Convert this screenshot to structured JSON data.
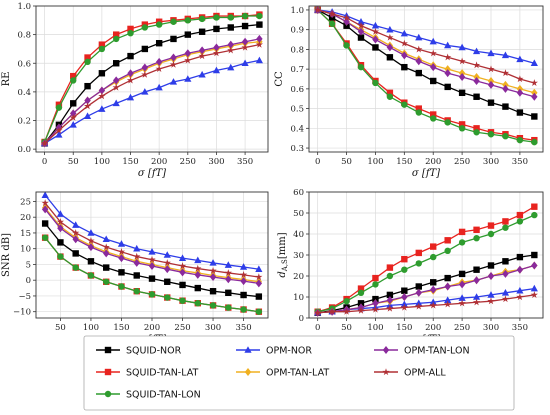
{
  "colors": {
    "SQUID-NOR": "#000000",
    "SQUID-TAN-LAT": "#e8231f",
    "SQUID-TAN-LON": "#2e9c2e",
    "OPM-NOR": "#2e3de8",
    "OPM-TAN-LAT": "#f0b020",
    "OPM-TAN-LON": "#8a2a9c",
    "OPM-ALL": "#b03035"
  },
  "markers": {
    "SQUID-NOR": "square",
    "SQUID-TAN-LAT": "square",
    "SQUID-TAN-LON": "circle",
    "OPM-NOR": "triangle",
    "OPM-TAN-LAT": "diamond",
    "OPM-TAN-LON": "diamond",
    "OPM-ALL": "star"
  },
  "legend": {
    "placement": "bottom-center",
    "items": [
      "SQUID-NOR",
      "OPM-NOR",
      "OPM-TAN-LON",
      "SQUID-TAN-LAT",
      "OPM-TAN-LAT",
      "OPM-ALL",
      "SQUID-TAN-LON"
    ]
  },
  "chart_data": [
    {
      "type": "line",
      "ylabel": "RE",
      "xlabel": "σ [fT]",
      "xlim": [
        -15,
        390
      ],
      "ylim": [
        -0.02,
        1.0
      ],
      "xticks": [
        0,
        50,
        100,
        150,
        200,
        250,
        300,
        350
      ],
      "yticks": [
        0.0,
        0.2,
        0.4,
        0.6,
        0.8,
        1.0
      ],
      "ytick_labels": [
        "0.0",
        "0.2",
        "0.4",
        "0.6",
        "0.8",
        "1.0"
      ],
      "grid": true,
      "x": [
        0,
        25,
        50,
        75,
        100,
        125,
        150,
        175,
        200,
        225,
        250,
        275,
        300,
        325,
        350,
        375
      ],
      "series": [
        {
          "name": "SQUID-NOR",
          "values": [
            0.04,
            0.17,
            0.32,
            0.44,
            0.53,
            0.6,
            0.65,
            0.7,
            0.74,
            0.77,
            0.8,
            0.82,
            0.84,
            0.85,
            0.86,
            0.87
          ]
        },
        {
          "name": "SQUID-TAN-LAT",
          "values": [
            0.05,
            0.31,
            0.51,
            0.64,
            0.73,
            0.8,
            0.84,
            0.87,
            0.89,
            0.9,
            0.91,
            0.92,
            0.93,
            0.93,
            0.93,
            0.94
          ]
        },
        {
          "name": "SQUID-TAN-LON",
          "values": [
            0.05,
            0.29,
            0.48,
            0.61,
            0.7,
            0.77,
            0.81,
            0.85,
            0.87,
            0.89,
            0.9,
            0.91,
            0.92,
            0.92,
            0.93,
            0.93
          ]
        },
        {
          "name": "OPM-NOR",
          "values": [
            0.04,
            0.1,
            0.17,
            0.23,
            0.28,
            0.32,
            0.36,
            0.4,
            0.43,
            0.47,
            0.49,
            0.52,
            0.55,
            0.57,
            0.6,
            0.62
          ]
        },
        {
          "name": "OPM-TAN-LAT",
          "values": [
            0.04,
            0.15,
            0.25,
            0.34,
            0.41,
            0.47,
            0.52,
            0.56,
            0.6,
            0.63,
            0.66,
            0.68,
            0.7,
            0.72,
            0.74,
            0.75
          ]
        },
        {
          "name": "OPM-TAN-LON",
          "values": [
            0.04,
            0.15,
            0.25,
            0.34,
            0.41,
            0.48,
            0.53,
            0.57,
            0.61,
            0.64,
            0.67,
            0.69,
            0.71,
            0.73,
            0.75,
            0.77
          ]
        },
        {
          "name": "OPM-ALL",
          "values": [
            0.04,
            0.13,
            0.22,
            0.3,
            0.37,
            0.43,
            0.48,
            0.52,
            0.56,
            0.59,
            0.62,
            0.65,
            0.67,
            0.69,
            0.71,
            0.73
          ]
        }
      ]
    },
    {
      "type": "line",
      "ylabel": "CC",
      "xlabel": "σ [fT]",
      "xlim": [
        -15,
        390
      ],
      "ylim": [
        0.28,
        1.02
      ],
      "xticks": [
        0,
        50,
        100,
        150,
        200,
        250,
        300,
        350
      ],
      "yticks": [
        0.3,
        0.4,
        0.5,
        0.6,
        0.7,
        0.8,
        0.9,
        1.0
      ],
      "ytick_labels": [
        "0.3",
        "0.4",
        "0.5",
        "0.6",
        "0.7",
        "0.8",
        "0.9",
        "1.0"
      ],
      "grid": true,
      "x": [
        0,
        25,
        50,
        75,
        100,
        125,
        150,
        175,
        200,
        225,
        250,
        275,
        300,
        325,
        350,
        375
      ],
      "series": [
        {
          "name": "SQUID-NOR",
          "values": [
            1.0,
            0.96,
            0.92,
            0.86,
            0.81,
            0.76,
            0.71,
            0.68,
            0.64,
            0.61,
            0.58,
            0.56,
            0.53,
            0.51,
            0.48,
            0.46
          ]
        },
        {
          "name": "SQUID-TAN-LAT",
          "values": [
            1.0,
            0.93,
            0.83,
            0.72,
            0.64,
            0.58,
            0.53,
            0.5,
            0.47,
            0.44,
            0.42,
            0.4,
            0.38,
            0.37,
            0.35,
            0.34
          ]
        },
        {
          "name": "SQUID-TAN-LON",
          "values": [
            1.0,
            0.93,
            0.82,
            0.71,
            0.63,
            0.56,
            0.52,
            0.48,
            0.45,
            0.43,
            0.4,
            0.38,
            0.37,
            0.36,
            0.34,
            0.33
          ]
        },
        {
          "name": "OPM-NOR",
          "values": [
            1.0,
            0.99,
            0.97,
            0.94,
            0.92,
            0.9,
            0.88,
            0.86,
            0.84,
            0.82,
            0.81,
            0.79,
            0.78,
            0.77,
            0.75,
            0.73
          ]
        },
        {
          "name": "OPM-TAN-LAT",
          "values": [
            1.0,
            0.98,
            0.94,
            0.9,
            0.86,
            0.82,
            0.78,
            0.75,
            0.72,
            0.7,
            0.68,
            0.66,
            0.64,
            0.62,
            0.6,
            0.58
          ]
        },
        {
          "name": "OPM-TAN-LON",
          "values": [
            1.0,
            0.98,
            0.94,
            0.89,
            0.85,
            0.81,
            0.77,
            0.74,
            0.71,
            0.68,
            0.66,
            0.64,
            0.62,
            0.6,
            0.58,
            0.56
          ]
        },
        {
          "name": "OPM-ALL",
          "values": [
            1.0,
            0.98,
            0.96,
            0.92,
            0.89,
            0.86,
            0.83,
            0.8,
            0.78,
            0.76,
            0.74,
            0.72,
            0.7,
            0.68,
            0.65,
            0.63
          ]
        }
      ]
    },
    {
      "type": "line",
      "ylabel": "SNR dB]",
      "xlabel": "σ [fT]",
      "xlim": [
        10,
        390
      ],
      "ylim": [
        -12,
        28
      ],
      "xticks": [
        50,
        100,
        150,
        200,
        250,
        300,
        350
      ],
      "yticks": [
        -10,
        -5,
        0,
        5,
        10,
        15,
        20,
        25
      ],
      "ytick_labels": [
        "−10",
        "−5",
        "0",
        "5",
        "10",
        "15",
        "20",
        "25"
      ],
      "grid": true,
      "x": [
        25,
        50,
        75,
        100,
        125,
        150,
        175,
        200,
        225,
        250,
        275,
        300,
        325,
        350,
        375
      ],
      "series": [
        {
          "name": "SQUID-NOR",
          "values": [
            18,
            12,
            8.5,
            6,
            4,
            2.5,
            1.5,
            0.5,
            -0.5,
            -1.5,
            -2.5,
            -3.5,
            -4.0,
            -4.7,
            -5.2
          ]
        },
        {
          "name": "SQUID-TAN-LAT",
          "values": [
            13.5,
            7.5,
            4,
            1.5,
            -0.5,
            -2,
            -3.5,
            -4.5,
            -5.5,
            -6.5,
            -7.3,
            -8.0,
            -8.7,
            -9.3,
            -10
          ]
        },
        {
          "name": "SQUID-TAN-LON",
          "values": [
            13.5,
            7.5,
            4,
            1.5,
            -0.5,
            -2,
            -3.5,
            -4.5,
            -5.5,
            -6.5,
            -7.3,
            -8.0,
            -8.7,
            -9.3,
            -10
          ]
        },
        {
          "name": "OPM-NOR",
          "values": [
            27,
            21,
            17.5,
            15,
            13,
            11.5,
            10,
            9,
            8,
            7,
            6.3,
            5.5,
            4.8,
            4.2,
            3.5
          ]
        },
        {
          "name": "OPM-TAN-LAT",
          "values": [
            23,
            17,
            13.5,
            11,
            9,
            7.5,
            6,
            5,
            4,
            3,
            2.3,
            1.5,
            0.8,
            0.2,
            -0.5
          ]
        },
        {
          "name": "OPM-TAN-LON",
          "values": [
            22.5,
            16.5,
            13,
            10.5,
            8.5,
            7,
            5.5,
            4.5,
            3.5,
            2.5,
            1.7,
            1.0,
            0.3,
            -0.3,
            -1.0
          ]
        },
        {
          "name": "OPM-ALL",
          "values": [
            24.5,
            18.5,
            15,
            12.5,
            10.5,
            9,
            7.5,
            6.5,
            5.5,
            4.5,
            3.7,
            3.0,
            2.3,
            1.7,
            1.0
          ]
        }
      ]
    },
    {
      "type": "line",
      "ylabel": "d",
      "ylabel_sub": "A,S",
      "ylabel_unit": "[mm]",
      "xlabel": "σ [fT]",
      "xlim": [
        -15,
        390
      ],
      "ylim": [
        0,
        60
      ],
      "xticks": [
        0,
        50,
        100,
        150,
        200,
        250,
        300,
        350
      ],
      "yticks": [
        0,
        10,
        20,
        30,
        40,
        50,
        60
      ],
      "ytick_labels": [
        "0",
        "10",
        "20",
        "30",
        "40",
        "50",
        "60"
      ],
      "grid": true,
      "x": [
        0,
        25,
        50,
        75,
        100,
        125,
        150,
        175,
        200,
        225,
        250,
        275,
        300,
        325,
        350,
        375
      ],
      "series": [
        {
          "name": "SQUID-NOR",
          "values": [
            2.5,
            3.5,
            5,
            7,
            9,
            11,
            13,
            15,
            17,
            19,
            21,
            23,
            25,
            27,
            29,
            30
          ]
        },
        {
          "name": "SQUID-TAN-LAT",
          "values": [
            3,
            5,
            9,
            14,
            19,
            24,
            28,
            31,
            34,
            37,
            41,
            42,
            44,
            46,
            49,
            53
          ]
        },
        {
          "name": "SQUID-TAN-LON",
          "values": [
            3,
            4.5,
            8,
            12,
            16,
            20,
            23,
            26,
            29,
            32,
            36,
            38,
            40,
            43,
            46,
            49
          ]
        },
        {
          "name": "OPM-NOR",
          "values": [
            2.5,
            3,
            4,
            4.5,
            5,
            6,
            6.5,
            7,
            7.5,
            8.5,
            9.5,
            10,
            11,
            12,
            13,
            14
          ]
        },
        {
          "name": "OPM-TAN-LAT",
          "values": [
            2.5,
            3,
            4,
            5,
            7,
            8,
            10,
            12,
            13,
            15,
            17,
            18,
            20,
            22,
            23,
            25
          ]
        },
        {
          "name": "OPM-TAN-LON",
          "values": [
            2.5,
            3,
            4,
            5,
            7,
            8.5,
            10,
            12,
            13.5,
            15,
            16,
            18,
            20,
            21,
            23,
            25
          ]
        },
        {
          "name": "OPM-ALL",
          "values": [
            2.5,
            3,
            3,
            3.5,
            4,
            4.5,
            5,
            5.5,
            6,
            6.5,
            7,
            7.5,
            8,
            9,
            10,
            11
          ]
        }
      ]
    }
  ]
}
